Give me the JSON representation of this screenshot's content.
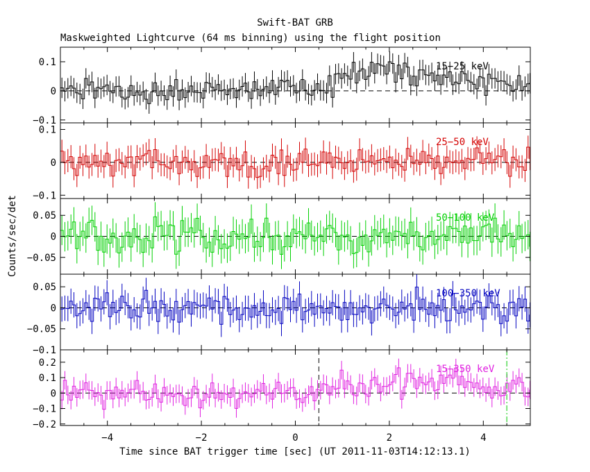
{
  "title": "Swift-BAT GRB",
  "subtitle": "Maskweighted Lightcurve (64 ms binning) using the flight position",
  "ylabel": "Counts/sec/det",
  "xlabel": "Time since BAT trigger time [sec] (UT 2011-11-03T14:12:13.1)",
  "chart_data": {
    "type": "line",
    "x_range": [
      -5,
      5
    ],
    "x_ticks": [
      -4,
      -2,
      0,
      2,
      4
    ],
    "x_tick_labels": [
      "−4",
      "−2",
      "0",
      "2",
      "4"
    ],
    "bin_width": 0.064,
    "grid": false,
    "markers": [
      {
        "x": 0.5,
        "panel": "15-350 keV",
        "style": "dashed",
        "color": "#000000"
      },
      {
        "x": 4.5,
        "panel": "15-350 keV",
        "style": "dash-dot",
        "color": "#00c800"
      }
    ],
    "panels": [
      {
        "band": "15−25 keV",
        "color": "#000000",
        "ylim": [
          -0.11,
          0.15
        ],
        "yticks": [
          -0.1,
          0,
          0.1
        ],
        "ytick_labels": [
          "−0.1",
          "0",
          "0.1"
        ],
        "amp": 0.03,
        "err": 0.035,
        "profile": [
          [
            -5,
            0.0
          ],
          [
            0.5,
            0.0
          ],
          [
            1.0,
            0.05
          ],
          [
            1.6,
            0.09
          ],
          [
            2.5,
            0.06
          ],
          [
            3.5,
            0.04
          ],
          [
            5,
            0.02
          ]
        ]
      },
      {
        "band": "25−50 keV",
        "color": "#d40000",
        "ylim": [
          -0.11,
          0.12
        ],
        "yticks": [
          -0.1,
          0,
          0.1
        ],
        "ytick_labels": [
          "−0.1",
          "0",
          "0.1"
        ],
        "amp": 0.03,
        "err": 0.035,
        "profile": [
          [
            -5,
            0.0
          ],
          [
            5,
            0.0
          ]
        ]
      },
      {
        "band": "50−100 keV",
        "color": "#00d000",
        "ylim": [
          -0.09,
          0.09
        ],
        "yticks": [
          -0.05,
          0,
          0.05
        ],
        "ytick_labels": [
          "−0.05",
          "0",
          "0.05"
        ],
        "amp": 0.028,
        "err": 0.035,
        "profile": [
          [
            -5,
            0.0
          ],
          [
            5,
            0.0
          ]
        ]
      },
      {
        "band": "100−350 keV",
        "color": "#0000c0",
        "ylim": [
          -0.1,
          0.08
        ],
        "yticks": [
          -0.1,
          -0.05,
          0,
          0.05
        ],
        "ytick_labels": [
          "−0.1",
          "−0.05",
          "0",
          "0.05"
        ],
        "amp": 0.025,
        "err": 0.03,
        "profile": [
          [
            -5,
            0.0
          ],
          [
            5,
            0.0
          ]
        ]
      },
      {
        "band": "15−350 keV",
        "color": "#e020e0",
        "ylim": [
          -0.21,
          0.28
        ],
        "yticks": [
          -0.2,
          -0.1,
          0,
          0.1,
          0.2
        ],
        "ytick_labels": [
          "−0.2",
          "−0.1",
          "0",
          "0.1",
          "0.2"
        ],
        "amp": 0.06,
        "err": 0.06,
        "profile": [
          [
            -5,
            0.0
          ],
          [
            0.5,
            0.0
          ],
          [
            1.2,
            0.06
          ],
          [
            2.5,
            0.07
          ],
          [
            4.0,
            0.05
          ],
          [
            5,
            0.05
          ]
        ]
      }
    ]
  }
}
